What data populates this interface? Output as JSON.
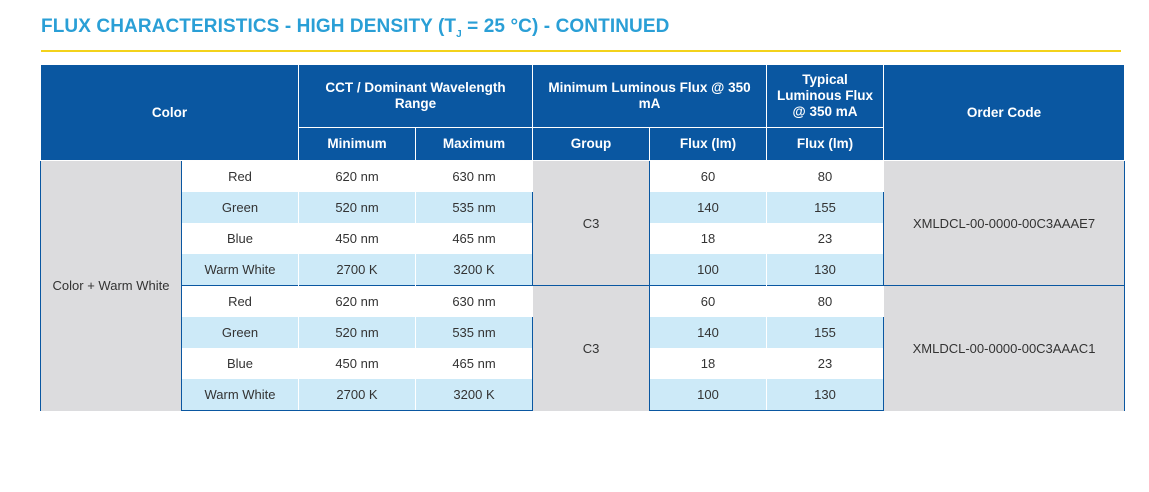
{
  "title": {
    "prefix": "FLUX CHARACTERISTICS - HIGH DENSITY (T",
    "subscript": "J",
    "suffix": " = 25 °C) - CONTINUED"
  },
  "headers": {
    "color": "Color",
    "cct": "CCT / Dominant Wavelength Range",
    "min_flux": "Minimum Luminous Flux @ 350 mA",
    "typ_flux": "Typical Luminous Flux @ 350 mA",
    "order_code": "Order Code",
    "minimum": "Minimum",
    "maximum": "Maximum",
    "group": "Group",
    "flux_lm": "Flux (lm)",
    "flux_lm_typ": "Flux (lm)"
  },
  "color_group": "Color + Warm White",
  "blocks": [
    {
      "group": "C3",
      "order_code": "XMLDCL-00-0000-00C3AAAE7",
      "rows": [
        {
          "color": "Red",
          "min": "620 nm",
          "max": "630 nm",
          "flux": "60",
          "typ": "80"
        },
        {
          "color": "Green",
          "min": "520 nm",
          "max": "535 nm",
          "flux": "140",
          "typ": "155"
        },
        {
          "color": "Blue",
          "min": "450 nm",
          "max": "465 nm",
          "flux": "18",
          "typ": "23"
        },
        {
          "color": "Warm White",
          "min": "2700 K",
          "max": "3200 K",
          "flux": "100",
          "typ": "130"
        }
      ]
    },
    {
      "group": "C3",
      "order_code": "XMLDCL-00-0000-00C3AAAC1",
      "rows": [
        {
          "color": "Red",
          "min": "620 nm",
          "max": "630 nm",
          "flux": "60",
          "typ": "80"
        },
        {
          "color": "Green",
          "min": "520 nm",
          "max": "535 nm",
          "flux": "140",
          "typ": "155"
        },
        {
          "color": "Blue",
          "min": "450 nm",
          "max": "465 nm",
          "flux": "18",
          "typ": "23"
        },
        {
          "color": "Warm White",
          "min": "2700 K",
          "max": "3200 K",
          "flux": "100",
          "typ": "130"
        }
      ]
    }
  ],
  "colors": {
    "title": "#2a9fd6",
    "rule": "#f3d21b",
    "header_bg": "#0a57a1",
    "stripe": "#cdeaf8",
    "merged_bg": "#dcdcde"
  }
}
